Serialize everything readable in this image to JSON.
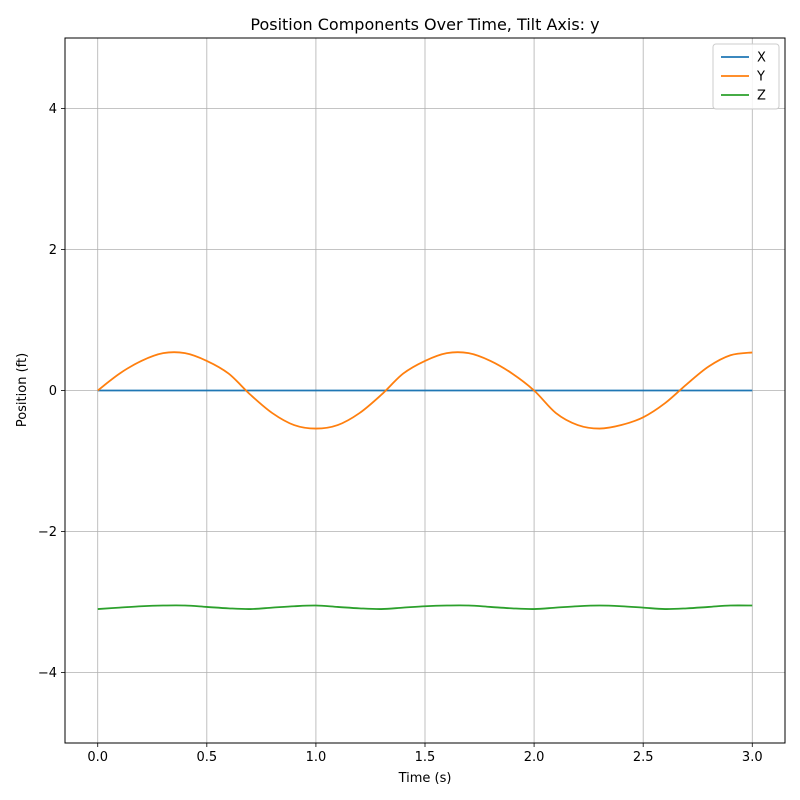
{
  "chart_data": {
    "type": "line",
    "title": "Position Components Over Time, Tilt Axis: y",
    "xlabel": "Time (s)",
    "ylabel": "Position (ft)",
    "xlim": [
      -0.15,
      3.15
    ],
    "ylim": [
      -5,
      5
    ],
    "x_ticks": [
      0.0,
      0.5,
      1.0,
      1.5,
      2.0,
      2.5,
      3.0
    ],
    "x_tick_labels": [
      "0.0",
      "0.5",
      "1.0",
      "1.5",
      "2.0",
      "2.5",
      "3.0"
    ],
    "y_ticks": [
      -4,
      -2,
      0,
      2,
      4
    ],
    "y_tick_labels": [
      "−4",
      "−2",
      "0",
      "2",
      "4"
    ],
    "grid": true,
    "legend_position": "top-right",
    "x": [
      0.0,
      0.1,
      0.2,
      0.3,
      0.4,
      0.5,
      0.6,
      0.7,
      0.8,
      0.9,
      1.0,
      1.1,
      1.2,
      1.3,
      1.4,
      1.5,
      1.6,
      1.7,
      1.8,
      1.9,
      2.0,
      2.1,
      2.2,
      2.3,
      2.4,
      2.5,
      2.6,
      2.7,
      2.8,
      2.9,
      3.0
    ],
    "series": [
      {
        "name": "X",
        "color": "#1f77b4",
        "values": [
          0,
          0,
          0,
          0,
          0,
          0,
          0,
          0,
          0,
          0,
          0,
          0,
          0,
          0,
          0,
          0,
          0,
          0,
          0,
          0,
          0,
          0,
          0,
          0,
          0,
          0,
          0,
          0,
          0,
          0,
          0
        ]
      },
      {
        "name": "Y",
        "color": "#ff7f0e",
        "values": [
          0.0,
          0.24,
          0.42,
          0.53,
          0.53,
          0.42,
          0.24,
          -0.06,
          -0.32,
          -0.49,
          -0.54,
          -0.49,
          -0.32,
          -0.06,
          0.24,
          0.42,
          0.53,
          0.53,
          0.42,
          0.24,
          0.0,
          -0.32,
          -0.49,
          -0.54,
          -0.49,
          -0.38,
          -0.18,
          0.09,
          0.34,
          0.5,
          0.54
        ]
      },
      {
        "name": "Z",
        "color": "#2ca02c",
        "values": [
          -3.1,
          -3.08,
          -3.06,
          -3.05,
          -3.05,
          -3.07,
          -3.09,
          -3.1,
          -3.08,
          -3.06,
          -3.05,
          -3.07,
          -3.09,
          -3.1,
          -3.08,
          -3.06,
          -3.05,
          -3.05,
          -3.07,
          -3.09,
          -3.1,
          -3.08,
          -3.06,
          -3.05,
          -3.06,
          -3.08,
          -3.1,
          -3.09,
          -3.07,
          -3.05,
          -3.05
        ]
      }
    ]
  }
}
